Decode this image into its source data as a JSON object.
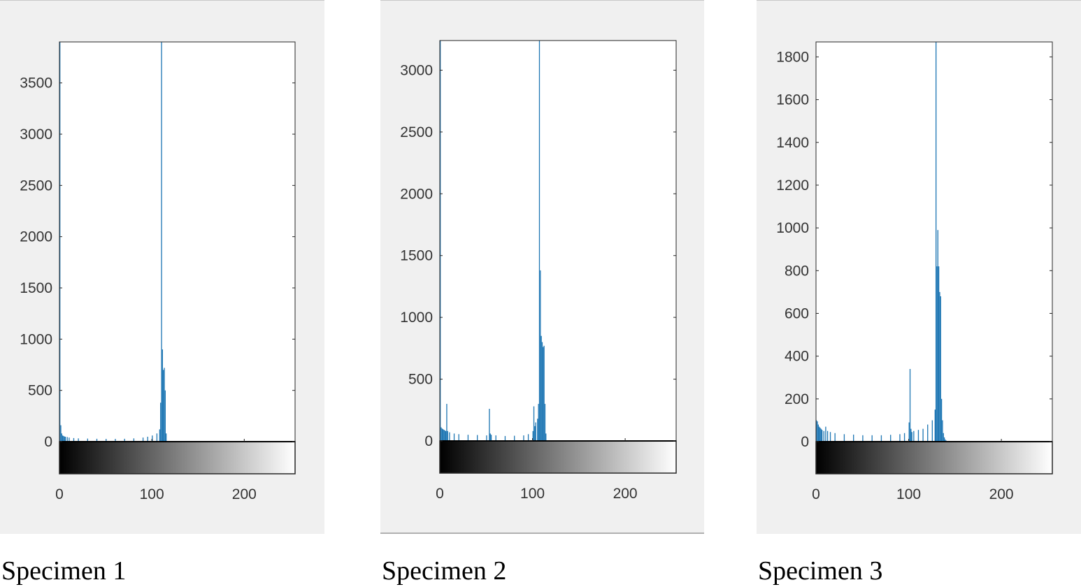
{
  "captions": [
    "Specimen 1",
    "Specimen 2",
    "Specimen 3"
  ],
  "colors": {
    "bars": "#1f77b4",
    "panel_bg": "#f0f0f0",
    "plot_bg": "#ffffff",
    "axis": "#262626"
  },
  "chart_data": [
    {
      "type": "bar",
      "title": "",
      "xlabel": "",
      "ylabel": "",
      "colorbar": "grayscale 0-255",
      "xlim": [
        0,
        255
      ],
      "ylim": [
        0,
        3900
      ],
      "xticks": [
        0,
        100,
        200
      ],
      "yticks": [
        0,
        500,
        1000,
        1500,
        2000,
        2500,
        3000,
        3500
      ],
      "grid": false,
      "series": [
        {
          "bins": [
            0,
            1,
            2,
            3,
            4,
            5,
            6,
            8,
            10,
            15,
            20,
            30,
            40,
            50,
            60,
            70,
            80,
            90,
            95,
            100,
            105,
            108,
            109,
            110,
            111,
            112,
            113,
            114,
            115,
            116
          ],
          "counts": [
            3900,
            160,
            80,
            60,
            55,
            50,
            48,
            45,
            40,
            35,
            32,
            30,
            28,
            27,
            27,
            28,
            32,
            40,
            48,
            60,
            80,
            120,
            380,
            3900,
            900,
            700,
            720,
            500,
            80,
            0
          ]
        }
      ]
    },
    {
      "type": "bar",
      "title": "",
      "xlabel": "",
      "ylabel": "",
      "colorbar": "grayscale 0-255",
      "xlim": [
        0,
        255
      ],
      "ylim": [
        0,
        3240
      ],
      "xticks": [
        0,
        100,
        200
      ],
      "yticks": [
        0,
        500,
        1000,
        1500,
        2000,
        2500,
        3000
      ],
      "grid": false,
      "series": [
        {
          "bins": [
            0,
            1,
            2,
            3,
            4,
            5,
            6,
            7,
            8,
            10,
            15,
            20,
            30,
            40,
            50,
            53,
            54,
            55,
            60,
            70,
            80,
            90,
            95,
            100,
            101,
            102,
            103,
            105,
            106,
            107,
            108,
            109,
            110,
            111,
            112,
            113,
            114,
            115
          ],
          "counts": [
            3240,
            110,
            100,
            95,
            90,
            85,
            80,
            300,
            80,
            70,
            60,
            55,
            50,
            48,
            45,
            260,
            60,
            50,
            45,
            40,
            42,
            45,
            55,
            80,
            280,
            120,
            150,
            180,
            300,
            3240,
            1380,
            850,
            800,
            760,
            770,
            300,
            60,
            0
          ]
        }
      ]
    },
    {
      "type": "bar",
      "title": "",
      "xlabel": "",
      "ylabel": "",
      "colorbar": "grayscale 0-255",
      "xlim": [
        0,
        255
      ],
      "ylim": [
        0,
        1870
      ],
      "xticks": [
        0,
        100,
        200
      ],
      "yticks": [
        0,
        200,
        400,
        600,
        800,
        1000,
        1200,
        1400,
        1600,
        1800
      ],
      "grid": false,
      "series": [
        {
          "bins": [
            0,
            1,
            2,
            3,
            4,
            5,
            6,
            8,
            10,
            12,
            15,
            20,
            30,
            40,
            50,
            60,
            70,
            80,
            90,
            95,
            100,
            101,
            102,
            103,
            105,
            110,
            115,
            120,
            125,
            128,
            129,
            130,
            131,
            132,
            133,
            134,
            135,
            136,
            137,
            138,
            139,
            140,
            141
          ],
          "counts": [
            100,
            95,
            80,
            70,
            65,
            60,
            55,
            50,
            70,
            50,
            45,
            40,
            35,
            33,
            30,
            30,
            30,
            32,
            35,
            40,
            90,
            340,
            60,
            45,
            50,
            55,
            60,
            80,
            100,
            150,
            1870,
            820,
            990,
            820,
            700,
            680,
            200,
            100,
            40,
            20,
            10,
            5,
            0
          ]
        }
      ]
    }
  ]
}
